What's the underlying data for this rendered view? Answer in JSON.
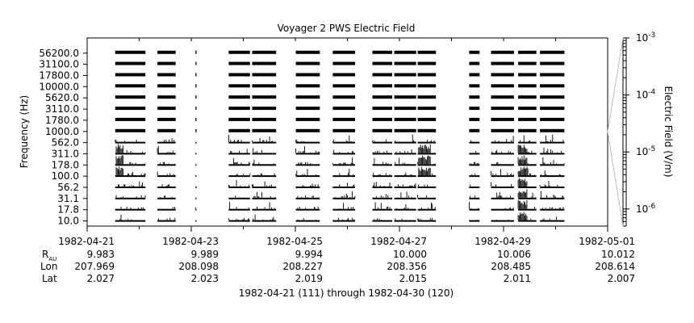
{
  "chart_data": {
    "type": "heatmap",
    "title": "Voyager 2 PWS Electric Field",
    "ylabel": "Frequency (Hz)",
    "colorbar_label": "Electric Field (V/m)",
    "colorbar_scale": "log",
    "colorbar_range": [
      5e-07,
      0.001
    ],
    "colorbar_ticks": [
      {
        "value": 0.001,
        "base": "10",
        "exp": "-3"
      },
      {
        "value": 0.0001,
        "base": "10",
        "exp": "-4"
      },
      {
        "value": 1e-05,
        "base": "10",
        "exp": "-5"
      },
      {
        "value": 1e-06,
        "base": "10",
        "exp": "-6"
      }
    ],
    "channels": [
      "56200.0",
      "31100.0",
      "17800.0",
      "10000.0",
      "5620.0",
      "3110.0",
      "1780.0",
      "1000.0",
      "562.0",
      "311.0",
      "178.0",
      "100.0",
      "56.2",
      "31.1",
      "17.8",
      "10.0"
    ],
    "x_range": [
      "1982-04-21",
      "1982-05-01"
    ],
    "x_ticks": [
      {
        "date": "1982-04-21",
        "rau": "9.983",
        "lon": "207.969",
        "lat": "2.027"
      },
      {
        "date": "1982-04-23",
        "rau": "9.989",
        "lon": "208.098",
        "lat": "2.023"
      },
      {
        "date": "1982-04-25",
        "rau": "9.994",
        "lon": "208.227",
        "lat": "2.019"
      },
      {
        "date": "1982-04-27",
        "rau": "10.000",
        "lon": "208.356",
        "lat": "2.015"
      },
      {
        "date": "1982-04-29",
        "rau": "10.006",
        "lon": "208.485",
        "lat": "2.011"
      },
      {
        "date": "1982-05-01",
        "rau": "10.012",
        "lon": "208.614",
        "lat": "2.007"
      }
    ],
    "ephemeris_labels": {
      "r": "R",
      "r_sub": "AU",
      "lon": "Lon",
      "lat": "Lat"
    },
    "x_caption": "1982-04-21 (111) through 1982-04-30 (120)",
    "data_segments_days": [
      [
        0.54,
        1.12
      ],
      [
        1.35,
        1.7
      ],
      [
        2.08,
        2.1
      ],
      [
        2.72,
        3.13
      ],
      [
        3.17,
        3.63
      ],
      [
        4.01,
        4.47
      ],
      [
        4.72,
        5.15
      ],
      [
        5.48,
        5.86
      ],
      [
        5.9,
        6.32
      ],
      [
        6.35,
        6.7
      ],
      [
        7.34,
        7.54
      ],
      [
        7.76,
        8.2
      ],
      [
        8.28,
        8.63
      ],
      [
        8.7,
        9.17
      ]
    ],
    "bursts": [
      {
        "day_start": 6.35,
        "day_end": 6.6,
        "channels": [
          "311.0",
          "178.0",
          "100.0"
        ]
      },
      {
        "day_start": 8.28,
        "day_end": 8.45,
        "channels": [
          "311.0",
          "178.0",
          "100.0",
          "56.2",
          "31.1",
          "17.8",
          "10.0"
        ]
      },
      {
        "day_start": 0.54,
        "day_end": 0.7,
        "channels": [
          "311.0",
          "178.0",
          "100.0"
        ]
      }
    ]
  }
}
